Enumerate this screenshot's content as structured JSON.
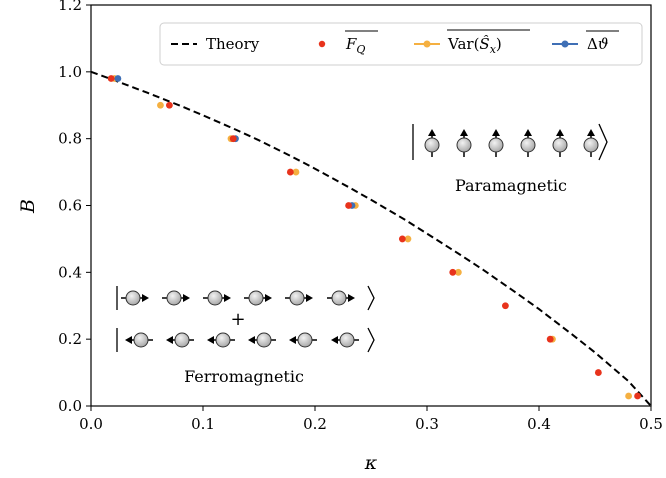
{
  "chart_data": {
    "type": "scatter",
    "xlabel": "κ",
    "ylabel": "B",
    "xlim": [
      0.0,
      0.5
    ],
    "ylim": [
      0.0,
      1.2
    ],
    "xticks": [
      "0.0",
      "0.1",
      "0.2",
      "0.3",
      "0.4",
      "0.5"
    ],
    "yticks": [
      "0.0",
      "0.2",
      "0.4",
      "0.6",
      "0.8",
      "1.0",
      "1.2"
    ],
    "grid": false,
    "legend_position": "top-right",
    "theory": {
      "name": "Theory",
      "style": "dashed",
      "color": "#000000",
      "x": [
        0.0,
        0.02,
        0.05,
        0.08,
        0.1,
        0.13,
        0.15,
        0.18,
        0.2,
        0.23,
        0.25,
        0.28,
        0.3,
        0.33,
        0.35,
        0.38,
        0.4,
        0.43,
        0.45,
        0.48,
        0.5
      ],
      "y": [
        1.0,
        0.976,
        0.938,
        0.898,
        0.87,
        0.826,
        0.795,
        0.745,
        0.71,
        0.655,
        0.617,
        0.558,
        0.516,
        0.452,
        0.408,
        0.338,
        0.29,
        0.213,
        0.16,
        0.074,
        0.0
      ]
    },
    "series": [
      {
        "name": "F_Q",
        "color": "#e8331c",
        "x": [
          0.018,
          0.07,
          0.127,
          0.178,
          0.23,
          0.278,
          0.323,
          0.37,
          0.41,
          0.453,
          0.488
        ],
        "y": [
          0.98,
          0.9,
          0.8,
          0.7,
          0.6,
          0.5,
          0.4,
          0.3,
          0.2,
          0.1,
          0.03
        ]
      },
      {
        "name": "Var(S_x)",
        "color": "#f5b041",
        "x": [
          0.021,
          0.062,
          0.125,
          0.183,
          0.236,
          0.283,
          0.328,
          0.412,
          0.48
        ],
        "y": [
          0.98,
          0.9,
          0.8,
          0.7,
          0.6,
          0.5,
          0.4,
          0.2,
          0.03
        ]
      },
      {
        "name": "Δϑ",
        "color": "#3f6fb5",
        "x": [
          0.024,
          0.129,
          0.233
        ],
        "y": [
          0.98,
          0.8,
          0.6
        ]
      }
    ],
    "annotations": [
      "Paramagnetic",
      "Ferromagnetic",
      "+"
    ]
  }
}
